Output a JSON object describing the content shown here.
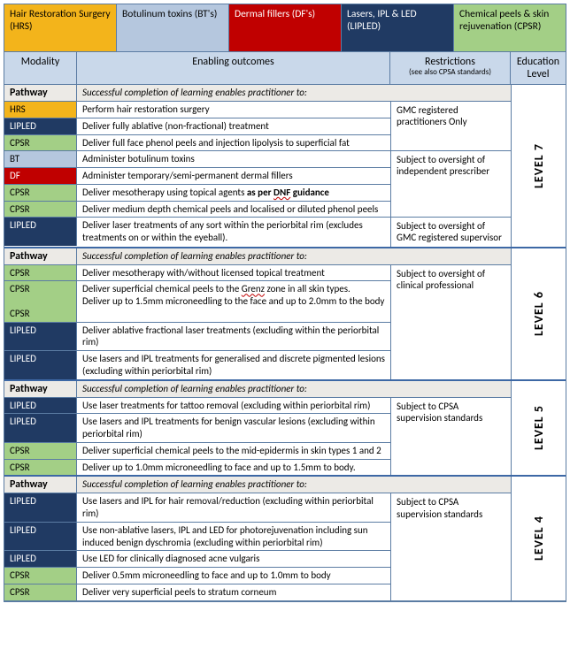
{
  "colors": {
    "HRS": "#f3b41b",
    "BT": "#b5c7de",
    "DF": "#c00000",
    "LIPLED": "#203a63",
    "CPSR": "#a3cf86",
    "pathway_bg": "#eceae6",
    "header_bg": "#c9d8ea",
    "border": "#5b7ca3"
  },
  "legend": [
    {
      "key": "HRS",
      "label": "Hair Restoration Surgery (HRS)",
      "fg": "#000000"
    },
    {
      "key": "BT",
      "label": "Botulinum toxins (BT's)",
      "fg": "#000000"
    },
    {
      "key": "DF",
      "label": "Dermal fillers (DF's)",
      "fg": "#ffffff"
    },
    {
      "key": "LIPLED",
      "label": "Lasers, IPL & LED (LIPLED)",
      "fg": "#ffffff"
    },
    {
      "key": "CPSR",
      "label": "Chemical peels & skin rejuvenation (CPSR)",
      "fg": "#000000"
    }
  ],
  "headers": {
    "modality": "Modality",
    "outcomes": "Enabling outcomes",
    "restrictions": "Restrictions",
    "restrictions_sub": "(see also CPSA standards)",
    "education": "Education Level"
  },
  "pathway_label": "Pathway",
  "levels": [
    {
      "edu": "LEVEL 7",
      "pathway_text": "Successful completion of learning enables practitioner to:",
      "groups": [
        {
          "restriction": "GMC registered practitioners Only",
          "rows": [
            {
              "mod": "HRS",
              "out": "Perform hair restoration surgery"
            },
            {
              "mod": "LIPLED",
              "out": "Deliver fully ablative (non-fractional) treatment"
            },
            {
              "mod": "CPSR",
              "out": "Deliver full face phenol peels and injection lipolysis to superficial fat"
            }
          ]
        },
        {
          "restriction": "Subject to oversight of independent prescriber",
          "rows": [
            {
              "mod": "BT",
              "out": "Administer botulinum toxins"
            },
            {
              "mod": "DF",
              "out": "Administer temporary/semi-permanent dermal fillers"
            },
            {
              "mod": "CPSR",
              "out": "Deliver mesotherapy using topical agents <b>as per <span class='wavy'>DNF</span> guidance</b>"
            },
            {
              "mod": "CPSR",
              "out": "Deliver medium depth chemical peels and localised or diluted phenol peels"
            }
          ]
        },
        {
          "restriction": "Subject to oversight of GMC registered supervisor",
          "rows": [
            {
              "mod": "LIPLED",
              "out": "Deliver laser treatments of any sort within the periorbital rim (excludes treatments on or within the eyeball)."
            }
          ]
        }
      ]
    },
    {
      "edu": "LEVEL 6",
      "pathway_text": "Successful completion of learning  enables practitioner to:",
      "groups": [
        {
          "restriction": "Subject to oversight of clinical professional",
          "rows": [
            {
              "mod": "CPSR",
              "out": "Deliver mesotherapy with/without licensed topical treatment"
            },
            {
              "mod": "CPSR<br><br>CPSR",
              "out": "Deliver superficial chemical peels to the <span class='wavy'>Grenz</span> zone in all skin types.<br>Deliver up to 1.5mm microneedling to the face and up to 2.0mm to the body"
            },
            {
              "mod": "LIPLED",
              "out": "Deliver ablative fractional laser treatments (excluding within the periorbital rim)"
            },
            {
              "mod": "LIPLED",
              "out": "Use lasers and IPL treatments for generalised and discrete pigmented lesions (excluding within periorbital rim)"
            }
          ]
        }
      ]
    },
    {
      "edu": "LEVEL 5",
      "pathway_text": "Successful completion of learning  enables practitioner to:",
      "groups": [
        {
          "restriction": "Subject to CPSA supervision standards",
          "rows": [
            {
              "mod": "LIPLED",
              "out": "Use laser treatments for tattoo removal (excluding within periorbital rim)"
            },
            {
              "mod": "LIPLED",
              "out": "Use lasers and IPL treatments for benign vascular lesions (excluding within periorbital rim)"
            },
            {
              "mod": "CPSR",
              "out": "Deliver superficial chemical peels to the mid-epidermis in skin types 1 and 2"
            },
            {
              "mod": "CPSR",
              "out": "Deliver up to 1.0mm microneedling to face and up to 1.5mm to body."
            }
          ]
        }
      ]
    },
    {
      "edu": "LEVEL 4",
      "pathway_text": "Successful completion of learning  enables practitioner to:",
      "groups": [
        {
          "restriction": "Subject to CPSA supervision standards",
          "rows": [
            {
              "mod": "LIPLED",
              "out": "Use lasers and IPL for hair removal/reduction (excluding within periorbital rim)"
            },
            {
              "mod": "LIPLED",
              "out": "Use non-ablative lasers, IPL and LED for photorejuvenation including sun induced benign dyschromia (excluding within periorbital rim)"
            },
            {
              "mod": "LIPLED",
              "out": "Use LED for clinically diagnosed acne vulgaris"
            },
            {
              "mod": "CPSR",
              "out": "Deliver 0.5mm microneedling to face and up to 1.0mm to body"
            },
            {
              "mod": "CPSR",
              "out": "Deliver very superficial peels to stratum corneum"
            }
          ]
        }
      ]
    }
  ]
}
